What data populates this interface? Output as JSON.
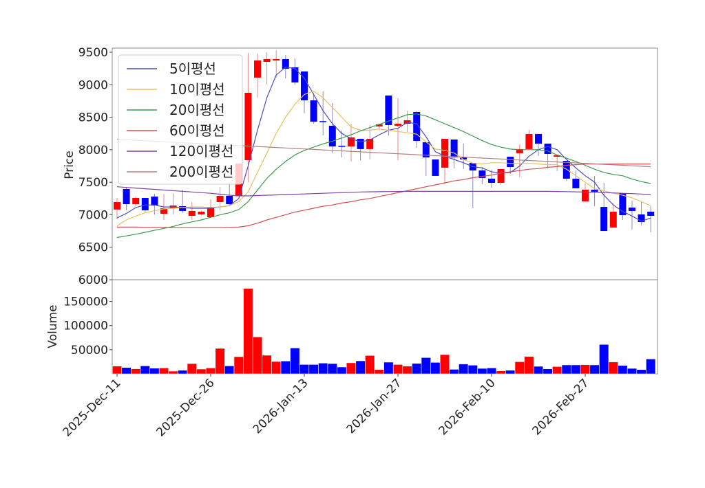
{
  "chart_data": [
    {
      "type": "candlestick",
      "ylabel": "Price",
      "ylim": [
        6000,
        9563
      ],
      "yticks": [
        6000,
        6500,
        7000,
        7500,
        8000,
        8500,
        9000,
        9500
      ],
      "up_color": "#ff0000",
      "down_color": "#0000ff",
      "grid": false,
      "legend_placement": "top-left",
      "dates": [
        "2025-12-11",
        "2025-12-12",
        "2025-12-15",
        "2025-12-16",
        "2025-12-17",
        "2025-12-18",
        "2025-12-19",
        "2025-12-22",
        "2025-12-23",
        "2025-12-24",
        "2025-12-26",
        "2025-12-29",
        "2025-12-30",
        "2026-01-02",
        "2026-01-05",
        "2026-01-06",
        "2026-01-07",
        "2026-01-08",
        "2026-01-09",
        "2026-01-12",
        "2026-01-13",
        "2026-01-14",
        "2026-01-15",
        "2026-01-16",
        "2026-01-19",
        "2026-01-20",
        "2026-01-21",
        "2026-01-22",
        "2026-01-23",
        "2026-01-26",
        "2026-01-27",
        "2026-01-28",
        "2026-01-29",
        "2026-01-30",
        "2026-02-02",
        "2026-02-03",
        "2026-02-04",
        "2026-02-05",
        "2026-02-06",
        "2026-02-09",
        "2026-02-10",
        "2026-02-11",
        "2026-02-12",
        "2026-02-13",
        "2026-02-19",
        "2026-02-20",
        "2026-02-23",
        "2026-02-24",
        "2026-02-25",
        "2026-02-26",
        "2026-02-27",
        "2026-03-03",
        "2026-03-04",
        "2026-03-05",
        "2026-03-06",
        "2026-03-09",
        "2026-03-10",
        "2026-03-11"
      ],
      "xtick_labels": [
        {
          "index": 0,
          "label": "2025-Dec-11"
        },
        {
          "index": 10,
          "label": "2025-Dec-26"
        },
        {
          "index": 20,
          "label": "2026-Jan-13"
        },
        {
          "index": 30,
          "label": "2026-Jan-27"
        },
        {
          "index": 40,
          "label": "2026-Feb-10"
        },
        {
          "index": 50,
          "label": "2026-Feb-27"
        }
      ],
      "ohlc": [
        [
          7080,
          7258,
          6941,
          7195
        ],
        [
          7396,
          7427,
          7068,
          7163
        ],
        [
          7163,
          7280,
          7131,
          7258
        ],
        [
          7258,
          7258,
          7047,
          7068
        ],
        [
          7280,
          7322,
          7000,
          7142
        ],
        [
          7015,
          7322,
          6920,
          7100
        ],
        [
          7100,
          7332,
          7005,
          7142
        ],
        [
          7131,
          7385,
          7026,
          7058
        ],
        [
          6983,
          7195,
          6920,
          7058
        ],
        [
          7005,
          7060,
          6990,
          7047
        ],
        [
          6962,
          7237,
          6962,
          7120
        ],
        [
          7195,
          7427,
          7068,
          7290
        ],
        [
          7290,
          7500,
          7131,
          7163
        ],
        [
          7290,
          7787,
          7290,
          7787
        ],
        [
          7840,
          9490,
          7500,
          8876
        ],
        [
          9109,
          9480,
          8800,
          9373
        ],
        [
          9352,
          9500,
          9003,
          9394
        ],
        [
          9373,
          9530,
          9109,
          9394
        ],
        [
          9394,
          9458,
          9098,
          9246
        ],
        [
          9267,
          9405,
          9000,
          9035
        ],
        [
          9204,
          9204,
          8560,
          8760
        ],
        [
          8760,
          8866,
          8400,
          8432
        ],
        [
          8440,
          8897,
          8220,
          8432
        ],
        [
          8369,
          8718,
          7946,
          8051
        ],
        [
          8060,
          8295,
          7882,
          8051
        ],
        [
          8051,
          8400,
          7819,
          8190
        ],
        [
          8168,
          8168,
          7840,
          8010
        ],
        [
          8010,
          8380,
          7850,
          8168
        ],
        [
          8358,
          8390,
          8300,
          8390
        ],
        [
          8834,
          8834,
          8220,
          8379
        ],
        [
          8369,
          8792,
          7840,
          8400
        ],
        [
          8400,
          8601,
          8273,
          8453
        ],
        [
          8580,
          8590,
          8030,
          8136
        ],
        [
          8115,
          8115,
          7597,
          7882
        ],
        [
          7850,
          7850,
          7597,
          7597
        ],
        [
          7724,
          8168,
          7470,
          8168
        ],
        [
          8157,
          8157,
          7713,
          7882
        ],
        [
          7882,
          8094,
          7702,
          7850
        ],
        [
          7797,
          7797,
          7100,
          7681
        ],
        [
          7681,
          7734,
          7470,
          7565
        ],
        [
          7555,
          7692,
          7417,
          7491
        ],
        [
          7491,
          7702,
          7460,
          7702
        ],
        [
          7892,
          7892,
          7628,
          7734
        ],
        [
          7946,
          8083,
          7576,
          8010
        ],
        [
          8010,
          8305,
          8010,
          8242
        ],
        [
          8242,
          8242,
          7903,
          8094
        ],
        [
          8094,
          8094,
          7713,
          7935
        ],
        [
          7892,
          7914,
          7670,
          7914
        ],
        [
          7829,
          7829,
          7522,
          7555
        ],
        [
          7555,
          7681,
          7406,
          7406
        ],
        [
          7205,
          7480,
          7205,
          7385
        ],
        [
          7385,
          7597,
          7131,
          7354
        ],
        [
          7120,
          7490,
          6750,
          6750
        ],
        [
          6804,
          7174,
          6804,
          7047
        ],
        [
          7332,
          7332,
          6920,
          6994
        ],
        [
          7110,
          7216,
          6772,
          7058
        ],
        [
          7005,
          7205,
          6835,
          6888
        ],
        [
          7047,
          7131,
          6730,
          6983
        ]
      ],
      "series": [
        {
          "name": "5이평선",
          "color": "#4a4ac0",
          "values": [
            6950,
            7020,
            7110,
            7150,
            7150,
            7120,
            7120,
            7110,
            7100,
            7100,
            7100,
            7120,
            7140,
            7250,
            7750,
            8300,
            8800,
            9150,
            9270,
            9250,
            9100,
            8850,
            8600,
            8400,
            8250,
            8170,
            8120,
            8150,
            8230,
            8300,
            8330,
            8420,
            8400,
            8200,
            7970,
            7900,
            7850,
            7800,
            7740,
            7720,
            7660,
            7640,
            7650,
            7750,
            7900,
            8000,
            8050,
            8000,
            7850,
            7720,
            7600,
            7500,
            7300,
            7150,
            7050,
            6980,
            6900,
            6950
          ]
        },
        {
          "name": "10이평선",
          "color": "#e8c060",
          "values": [
            6830,
            6920,
            6980,
            7030,
            7060,
            7090,
            7100,
            7110,
            7120,
            7120,
            7110,
            7120,
            7140,
            7200,
            7350,
            7650,
            7950,
            8250,
            8500,
            8700,
            8850,
            8900,
            8800,
            8650,
            8500,
            8350,
            8300,
            8300,
            8320,
            8300,
            8280,
            8260,
            8240,
            8120,
            8010,
            7990,
            7950,
            7850,
            7790,
            7780,
            7800,
            7800,
            7790,
            7790,
            7790,
            7780,
            7770,
            7770,
            7700,
            7600,
            7500,
            7400,
            7370,
            7330,
            7300,
            7260,
            7200,
            7140
          ]
        },
        {
          "name": "20이평선",
          "color": "#3a9a4a",
          "values": [
            6650,
            6675,
            6700,
            6730,
            6760,
            6790,
            6820,
            6860,
            6890,
            6920,
            6960,
            7000,
            7030,
            7080,
            7200,
            7380,
            7560,
            7700,
            7820,
            7920,
            7990,
            8040,
            8090,
            8130,
            8180,
            8230,
            8290,
            8340,
            8390,
            8440,
            8490,
            8540,
            8550,
            8520,
            8460,
            8400,
            8340,
            8280,
            8210,
            8140,
            8080,
            8040,
            8010,
            8000,
            8000,
            8000,
            7980,
            7920,
            7870,
            7820,
            7760,
            7700,
            7650,
            7620,
            7600,
            7550,
            7510,
            7480
          ]
        },
        {
          "name": "60이평선",
          "color": "#d05050",
          "values": [
            6810,
            6810,
            6810,
            6805,
            6805,
            6805,
            6800,
            6800,
            6800,
            6800,
            6800,
            6800,
            6805,
            6810,
            6830,
            6870,
            6920,
            6960,
            7000,
            7040,
            7070,
            7100,
            7130,
            7150,
            7180,
            7200,
            7230,
            7250,
            7280,
            7310,
            7340,
            7370,
            7400,
            7430,
            7460,
            7490,
            7520,
            7540,
            7570,
            7590,
            7610,
            7640,
            7660,
            7680,
            7700,
            7710,
            7730,
            7740,
            7760,
            7770,
            7780,
            7780,
            7780,
            7780,
            7780,
            7780,
            7780,
            7780
          ]
        },
        {
          "name": "120이평선",
          "color": "#8040a0",
          "values": [
            7430,
            7420,
            7410,
            7400,
            7390,
            7380,
            7370,
            7360,
            7350,
            7340,
            7330,
            7315,
            7300,
            7290,
            7290,
            7295,
            7300,
            7305,
            7310,
            7315,
            7320,
            7325,
            7330,
            7335,
            7340,
            7345,
            7350,
            7352,
            7354,
            7356,
            7358,
            7360,
            7360,
            7360,
            7360,
            7360,
            7360,
            7360,
            7360,
            7360,
            7360,
            7360,
            7360,
            7360,
            7360,
            7360,
            7360,
            7358,
            7355,
            7352,
            7348,
            7344,
            7340,
            7335,
            7330,
            7325,
            7318,
            7310
          ]
        },
        {
          "name": "200이평선",
          "color": "#b08080",
          "values": [
            8160,
            8153,
            8145,
            8138,
            8130,
            8123,
            8116,
            8108,
            8101,
            8093,
            8086,
            8079,
            8071,
            8064,
            8056,
            8049,
            8042,
            8034,
            8027,
            8019,
            8012,
            8005,
            7997,
            7990,
            7982,
            7975,
            7968,
            7960,
            7953,
            7945,
            7938,
            7931,
            7923,
            7916,
            7908,
            7901,
            7894,
            7886,
            7879,
            7871,
            7864,
            7857,
            7849,
            7842,
            7834,
            7827,
            7820,
            7812,
            7805,
            7797,
            7790,
            7783,
            7775,
            7768,
            7760,
            7753,
            7746,
            7738
          ]
        }
      ]
    },
    {
      "type": "bar",
      "ylabel": "Volume",
      "ylim": [
        0,
        195000
      ],
      "yticks": [
        50000,
        100000,
        150000
      ],
      "values": [
        16200,
        13300,
        10500,
        16700,
        11900,
        12400,
        5700,
        7600,
        21400,
        10000,
        12400,
        52900,
        16700,
        35700,
        177000,
        76700,
        38600,
        25700,
        26700,
        53800,
        19500,
        19500,
        22400,
        21400,
        14300,
        22900,
        27100,
        38100,
        9000,
        24300,
        19500,
        16200,
        21900,
        33800,
        23800,
        40000,
        9500,
        20500,
        18100,
        11400,
        12400,
        6200,
        7600,
        25200,
        36200,
        15700,
        10500,
        15200,
        18600,
        18600,
        19000,
        18600,
        61000,
        24800,
        17600,
        11400,
        9000,
        31000
      ]
    }
  ]
}
